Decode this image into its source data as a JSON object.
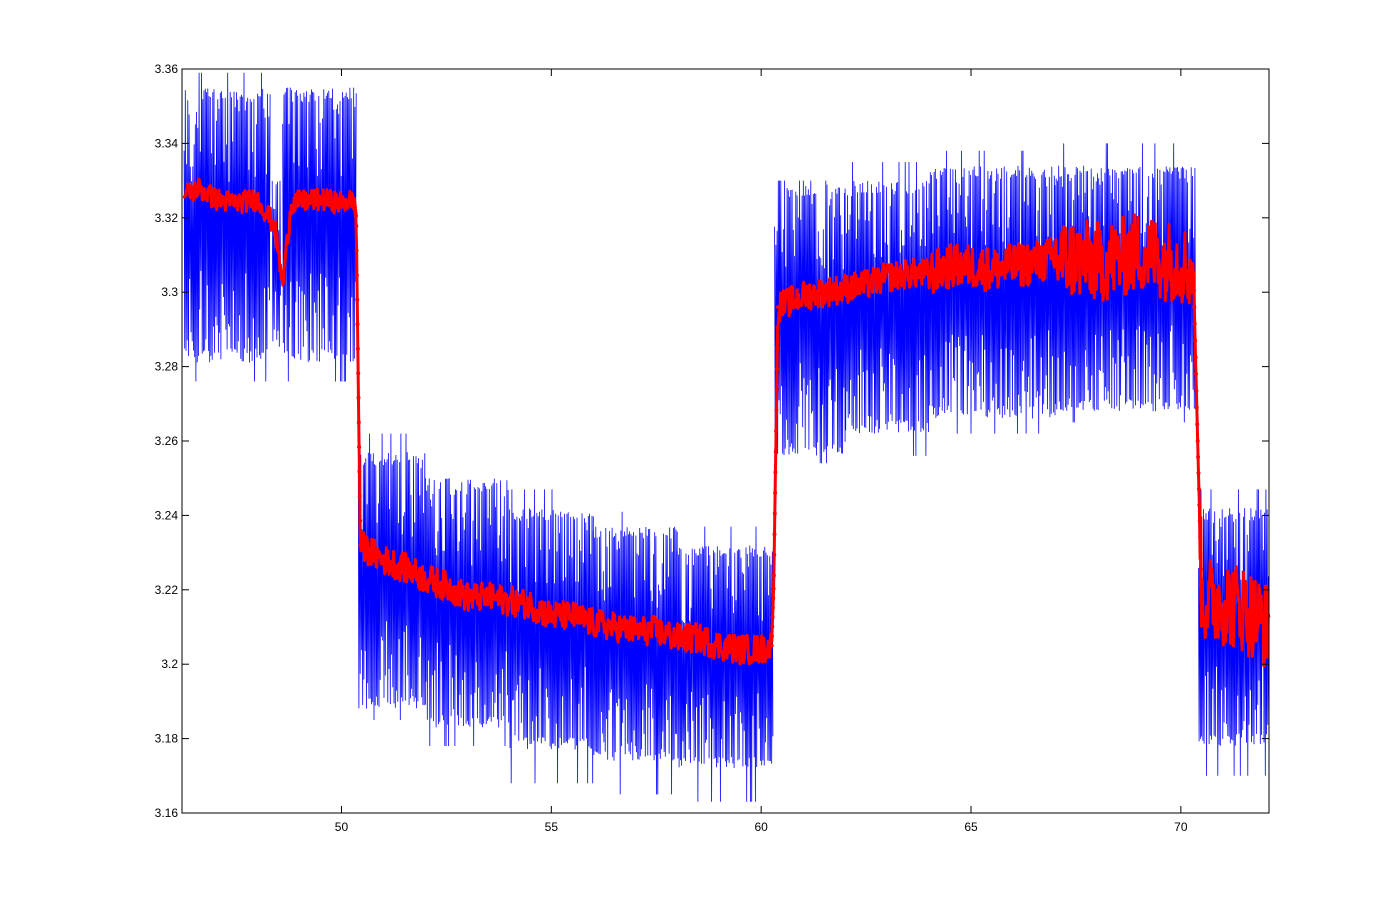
{
  "chart_data": {
    "type": "line",
    "title": "",
    "xlabel": "",
    "ylabel": "",
    "xlim": [
      46.2,
      72.1
    ],
    "ylim": [
      3.16,
      3.36
    ],
    "xticks": [
      50,
      55,
      60,
      65,
      70
    ],
    "xtick_labels": [
      "50",
      "55",
      "60",
      "65",
      "70"
    ],
    "yticks": [
      3.16,
      3.18,
      3.2,
      3.22,
      3.24,
      3.26,
      3.28,
      3.3,
      3.32,
      3.34,
      3.36
    ],
    "ytick_labels": [
      "3.16",
      "3.18",
      "3.2",
      "3.22",
      "3.24",
      "3.26",
      "3.28",
      "3.3",
      "3.32",
      "3.34",
      "3.36"
    ],
    "grid": false,
    "legend": "none",
    "series": [
      {
        "style": "raw-oscillating",
        "color": "#0000ff",
        "segments": [
          {
            "x_range": [
              46.25,
              48.3
            ],
            "band_low": 3.281,
            "band_high": 3.355,
            "spike_low": 3.276,
            "spike_high": 3.359
          },
          {
            "x_range": [
              48.35,
              48.55
            ],
            "band_low": 3.285,
            "band_high": 3.33,
            "spike_low": 3.285,
            "spike_high": 3.33
          },
          {
            "x_range": [
              48.6,
              50.35
            ],
            "band_low": 3.281,
            "band_high": 3.355,
            "spike_low": 3.276,
            "spike_high": 3.355
          },
          {
            "x_range": [
              50.4,
              52.0
            ],
            "band_low": 3.188,
            "band_high": 3.257,
            "spike_low": 3.185,
            "spike_high": 3.262
          },
          {
            "x_range": [
              52.0,
              54.0
            ],
            "band_low": 3.183,
            "band_high": 3.25,
            "spike_low": 3.178,
            "spike_high": 3.25
          },
          {
            "x_range": [
              54.0,
              56.0
            ],
            "band_low": 3.177,
            "band_high": 3.242,
            "spike_low": 3.168,
            "spike_high": 3.247
          },
          {
            "x_range": [
              56.0,
              58.0
            ],
            "band_low": 3.174,
            "band_high": 3.237,
            "spike_low": 3.165,
            "spike_high": 3.241
          },
          {
            "x_range": [
              58.0,
              60.28
            ],
            "band_low": 3.172,
            "band_high": 3.232,
            "spike_low": 3.163,
            "spike_high": 3.237
          },
          {
            "x_range": [
              60.32,
              62.0
            ],
            "band_low": 3.256,
            "band_high": 3.329,
            "spike_low": 3.254,
            "spike_high": 3.33
          },
          {
            "x_range": [
              62.0,
              64.0
            ],
            "band_low": 3.262,
            "band_high": 3.33,
            "spike_low": 3.256,
            "spike_high": 3.335
          },
          {
            "x_range": [
              64.0,
              67.0
            ],
            "band_low": 3.266,
            "band_high": 3.334,
            "spike_low": 3.262,
            "spike_high": 3.338
          },
          {
            "x_range": [
              67.0,
              70.35
            ],
            "band_low": 3.268,
            "band_high": 3.334,
            "spike_low": 3.265,
            "spike_high": 3.34
          },
          {
            "x_range": [
              70.42,
              72.1
            ],
            "band_low": 3.178,
            "band_high": 3.242,
            "spike_low": 3.17,
            "spike_high": 3.247
          }
        ]
      },
      {
        "style": "smoothed",
        "color": "#ff0000",
        "points": [
          [
            46.25,
            3.326
          ],
          [
            46.6,
            3.328
          ],
          [
            47.0,
            3.325
          ],
          [
            47.5,
            3.324
          ],
          [
            48.0,
            3.325
          ],
          [
            48.4,
            3.318
          ],
          [
            48.6,
            3.302
          ],
          [
            48.8,
            3.324
          ],
          [
            49.5,
            3.325
          ],
          [
            50.0,
            3.324
          ],
          [
            50.3,
            3.325
          ],
          [
            50.35,
            3.32
          ],
          [
            50.45,
            3.232
          ],
          [
            51.0,
            3.228
          ],
          [
            51.5,
            3.226
          ],
          [
            52.0,
            3.223
          ],
          [
            52.5,
            3.221
          ],
          [
            53.0,
            3.218
          ],
          [
            53.5,
            3.218
          ],
          [
            54.0,
            3.217
          ],
          [
            54.5,
            3.216
          ],
          [
            55.0,
            3.213
          ],
          [
            55.5,
            3.213
          ],
          [
            56.0,
            3.211
          ],
          [
            56.5,
            3.21
          ],
          [
            57.0,
            3.209
          ],
          [
            57.5,
            3.209
          ],
          [
            58.0,
            3.207
          ],
          [
            58.5,
            3.207
          ],
          [
            59.0,
            3.205
          ],
          [
            59.5,
            3.204
          ],
          [
            60.0,
            3.204
          ],
          [
            60.25,
            3.205
          ],
          [
            60.3,
            3.222
          ],
          [
            60.4,
            3.296
          ],
          [
            61.0,
            3.299
          ],
          [
            61.5,
            3.3
          ],
          [
            62.0,
            3.301
          ],
          [
            62.5,
            3.302
          ],
          [
            63.0,
            3.304
          ],
          [
            63.5,
            3.305
          ],
          [
            64.0,
            3.305
          ],
          [
            64.5,
            3.307
          ],
          [
            65.0,
            3.307
          ],
          [
            65.5,
            3.306
          ],
          [
            66.0,
            3.307
          ],
          [
            66.5,
            3.308
          ],
          [
            67.0,
            3.309
          ],
          [
            67.5,
            3.309
          ],
          [
            68.0,
            3.308
          ],
          [
            68.5,
            3.309
          ],
          [
            69.0,
            3.311
          ],
          [
            69.5,
            3.309
          ],
          [
            70.0,
            3.308
          ],
          [
            70.3,
            3.305
          ],
          [
            70.4,
            3.26
          ],
          [
            70.5,
            3.217
          ],
          [
            71.0,
            3.217
          ],
          [
            71.5,
            3.215
          ],
          [
            72.1,
            3.21
          ]
        ],
        "noise_amplitude": [
          {
            "x_range": [
              46.25,
              50.3
            ],
            "amp": 0.003
          },
          {
            "x_range": [
              50.45,
              60.25
            ],
            "amp": 0.004
          },
          {
            "x_range": [
              60.4,
              64.0
            ],
            "amp": 0.004
          },
          {
            "x_range": [
              64.0,
              67.0
            ],
            "amp": 0.006
          },
          {
            "x_range": [
              67.0,
              70.3
            ],
            "amp": 0.011
          },
          {
            "x_range": [
              70.45,
              72.1
            ],
            "amp": 0.012
          }
        ]
      }
    ]
  }
}
